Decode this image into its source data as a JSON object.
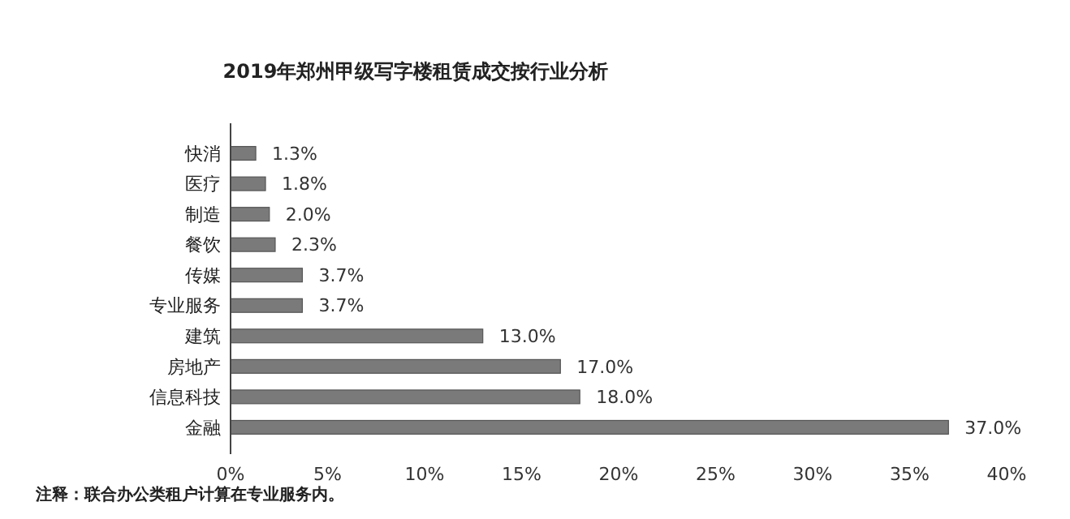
{
  "chart_data": {
    "type": "bar",
    "orientation": "horizontal",
    "title": "2019年郑州甲级写字楼租赁成交按行业分析",
    "categories": [
      "快消",
      "医疗",
      "制造",
      "餐饮",
      "传媒",
      "专业服务",
      "建筑",
      "房地产",
      "信息科技",
      "金融"
    ],
    "values": [
      1.3,
      1.8,
      2.0,
      2.3,
      3.7,
      3.7,
      13.0,
      17.0,
      18.0,
      37.0
    ],
    "value_labels": [
      "1.3%",
      "1.8%",
      "2.0%",
      "2.3%",
      "3.7%",
      "3.7%",
      "13.0%",
      "17.0%",
      "18.0%",
      "37.0%"
    ],
    "color": "#7a7a7a",
    "xlim": [
      0,
      40
    ],
    "xticks": [
      {
        "value": 0,
        "label": "0%"
      },
      {
        "value": 5,
        "label": "5%"
      },
      {
        "value": 10,
        "label": "10%"
      },
      {
        "value": 15,
        "label": "15%"
      },
      {
        "value": 20,
        "label": "20%"
      },
      {
        "value": 25,
        "label": "25%"
      },
      {
        "value": 30,
        "label": "30%"
      },
      {
        "value": 35,
        "label": "35%"
      },
      {
        "value": 40,
        "label": "40%"
      }
    ],
    "grid": false,
    "annotations": [
      "注释：联合办公类租户计算在专业服务内。"
    ]
  }
}
